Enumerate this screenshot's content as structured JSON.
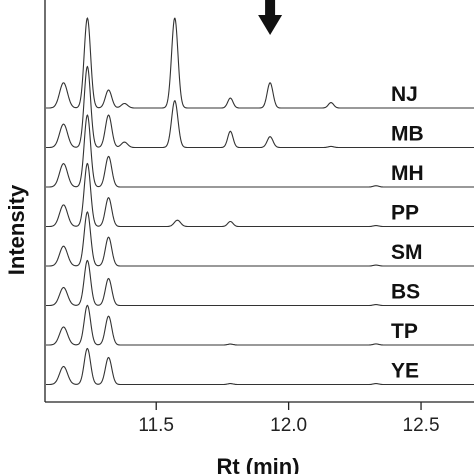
{
  "chart_data": {
    "type": "line",
    "xlabel": "Rt (min)",
    "ylabel": "Intensity",
    "xlim": [
      11.08,
      12.7
    ],
    "xticks": [
      11.5,
      12.0,
      12.5
    ],
    "xtick_labels": [
      "11.5",
      "12.0",
      "12.5"
    ],
    "grid": false,
    "legend": "none",
    "line_color": "#333333",
    "annotation": {
      "type": "arrow",
      "x": 11.93,
      "target_series": "NJ"
    },
    "series": [
      {
        "name": "NJ",
        "peaks": [
          [
            11.15,
            1.4,
            0.015
          ],
          [
            11.24,
            5.0,
            0.012
          ],
          [
            11.32,
            1.0,
            0.012
          ],
          [
            11.38,
            0.25,
            0.012
          ],
          [
            11.57,
            5.0,
            0.012
          ],
          [
            11.78,
            0.55,
            0.01
          ],
          [
            11.93,
            1.4,
            0.011
          ],
          [
            12.16,
            0.3,
            0.01
          ]
        ]
      },
      {
        "name": "MB",
        "peaks": [
          [
            11.15,
            1.3,
            0.015
          ],
          [
            11.24,
            4.5,
            0.012
          ],
          [
            11.32,
            1.8,
            0.012
          ],
          [
            11.38,
            0.3,
            0.012
          ],
          [
            11.57,
            2.6,
            0.012
          ],
          [
            11.78,
            0.9,
            0.01
          ],
          [
            11.93,
            0.6,
            0.011
          ],
          [
            12.16,
            0.06,
            0.01
          ]
        ]
      },
      {
        "name": "MH",
        "peaks": [
          [
            11.15,
            1.3,
            0.015
          ],
          [
            11.24,
            4.0,
            0.012
          ],
          [
            11.32,
            1.7,
            0.012
          ],
          [
            12.33,
            0.07,
            0.01
          ]
        ]
      },
      {
        "name": "PP",
        "peaks": [
          [
            11.15,
            1.2,
            0.015
          ],
          [
            11.24,
            3.5,
            0.012
          ],
          [
            11.32,
            1.6,
            0.012
          ],
          [
            11.58,
            0.35,
            0.012
          ],
          [
            11.78,
            0.28,
            0.01
          ],
          [
            12.33,
            0.05,
            0.01
          ]
        ]
      },
      {
        "name": "SM",
        "peaks": [
          [
            11.15,
            1.1,
            0.015
          ],
          [
            11.24,
            3.0,
            0.012
          ],
          [
            11.32,
            1.6,
            0.012
          ],
          [
            12.33,
            0.05,
            0.01
          ]
        ]
      },
      {
        "name": "BS",
        "peaks": [
          [
            11.15,
            1.0,
            0.015
          ],
          [
            11.24,
            2.5,
            0.012
          ],
          [
            11.32,
            1.5,
            0.012
          ],
          [
            12.33,
            0.05,
            0.01
          ]
        ]
      },
      {
        "name": "TP",
        "peaks": [
          [
            11.15,
            1.0,
            0.015
          ],
          [
            11.24,
            2.2,
            0.012
          ],
          [
            11.32,
            1.6,
            0.012
          ],
          [
            11.78,
            0.05,
            0.01
          ],
          [
            12.33,
            0.06,
            0.01
          ]
        ]
      },
      {
        "name": "YE",
        "peaks": [
          [
            11.15,
            1.0,
            0.015
          ],
          [
            11.24,
            2.0,
            0.012
          ],
          [
            11.32,
            1.5,
            0.012
          ],
          [
            11.78,
            0.05,
            0.01
          ],
          [
            12.33,
            0.05,
            0.01
          ]
        ]
      }
    ]
  }
}
